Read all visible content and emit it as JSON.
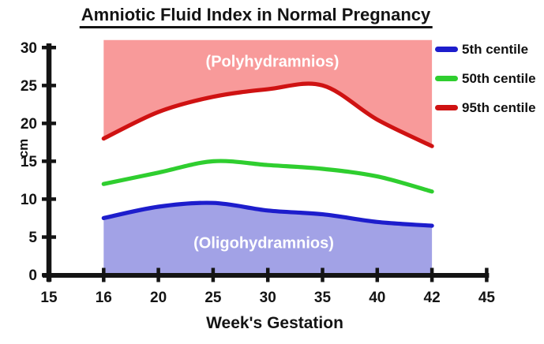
{
  "chart_data": {
    "type": "line",
    "title": "Amniotic Fluid Index in Normal Pregnancy",
    "xlabel": "Week's Gestation",
    "ylabel": "cm",
    "x_tick_labels": [
      15,
      16,
      20,
      25,
      30,
      35,
      40,
      42,
      45
    ],
    "x_axis_note": "ticks equally spaced (categorical) despite uneven week values",
    "y_ticks": [
      0,
      5,
      10,
      15,
      20,
      25,
      30
    ],
    "ylim": [
      0,
      30
    ],
    "grid": false,
    "legend_position": "right-top",
    "x": [
      16,
      20,
      25,
      30,
      35,
      40,
      42
    ],
    "series": [
      {
        "name": "5th centile",
        "color": "#1d1dcc",
        "values": [
          7.5,
          9,
          9.5,
          8.5,
          8,
          7,
          6.5
        ]
      },
      {
        "name": "50th centile",
        "color": "#2fce2f",
        "values": [
          12,
          13.5,
          15,
          14.5,
          14,
          13,
          11
        ]
      },
      {
        "name": "95th centile",
        "color": "#cf1212",
        "values": [
          18,
          21.5,
          23.5,
          24.5,
          25,
          20.5,
          17
        ]
      }
    ],
    "regions": [
      {
        "label": "(Polyhydramnios)",
        "position": "above 95th centile curve, weeks 16-42",
        "fill": "#f89a9a",
        "top_cm": 31
      },
      {
        "label": "(Oligohydramnios)",
        "position": "below 5th centile curve, weeks 16-42",
        "fill": "#a2a2e6",
        "bottom_cm": 0
      }
    ],
    "axis_color": "#141414"
  }
}
